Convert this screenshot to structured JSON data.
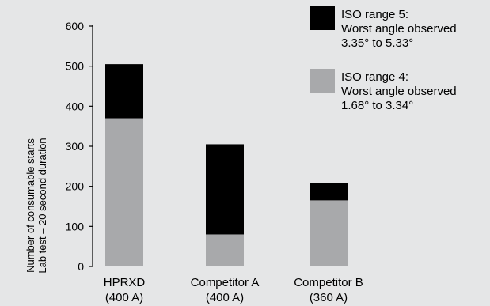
{
  "chart_data": {
    "type": "bar",
    "stacked": true,
    "categories": [
      "HPRXD",
      "Competitor A",
      "Competitor B"
    ],
    "category_sublabels": [
      "(400 A)",
      "(400 A)",
      "(360 A)"
    ],
    "series": [
      {
        "name": "ISO range 4:",
        "name_lines": [
          "ISO range 4:",
          "Worst angle observed",
          "1.68° to 3.34°"
        ],
        "color": "#a8a9ab",
        "values": [
          370,
          80,
          165
        ]
      },
      {
        "name": "ISO range 5:",
        "name_lines": [
          "ISO range 5:",
          "Worst angle observed",
          "3.35° to 5.33°"
        ],
        "color": "#000000",
        "values": [
          135,
          225,
          43
        ]
      }
    ],
    "ylabel_lines": [
      "Number of consumable starts",
      "Lab test – 20 second duration"
    ],
    "yticks": [
      0,
      100,
      200,
      300,
      400,
      500,
      600
    ],
    "ylim": [
      0,
      600
    ],
    "grid": false,
    "legend_position": "top-right",
    "background": "#e5e6e7"
  }
}
